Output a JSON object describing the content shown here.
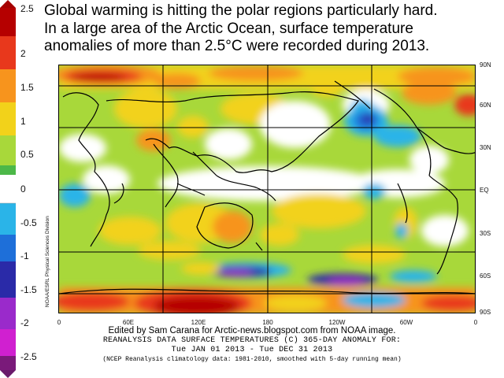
{
  "headline": {
    "line1": "Global warming is hitting the polar regions particularly hard.",
    "line2": "In a large area of the Arctic Ocean, surface temperature",
    "line3": "anomalies of more than 2.5°C were recorded during 2013."
  },
  "scale": {
    "labels": [
      "2.5",
      "2",
      "1.5",
      "1",
      "0.5",
      "0",
      "-0.5",
      "-1",
      "-1.5",
      "-2",
      "-2.5"
    ],
    "colors": [
      "#a50000",
      "#e8381c",
      "#f7941d",
      "#f2d21a",
      "#a8d83a",
      "#4cb848",
      "#ffffff",
      "#2ab4e8",
      "#1e6fd9",
      "#2a2aa8",
      "#7a2ab8",
      "#d020d0",
      "#7a1a7a"
    ]
  },
  "axes": {
    "lat_labels": [
      "90N",
      "60N",
      "30N",
      "EQ",
      "30S",
      "60S",
      "90S"
    ],
    "lon_labels": [
      "0",
      "60E",
      "120E",
      "180",
      "120W",
      "60W",
      "0"
    ]
  },
  "side_credit": "NOAA/ESRL Physical Sciences Division",
  "footer": {
    "credit": "Edited by Sam Carana for Arctic-news.blogspot.com from NOAA image.",
    "line1": "REANALYSIS DATA   SURFACE TEMPERATURES (C)   365-DAY ANOMALY FOR:",
    "line2": "Tue JAN 01 2013 - Tue DEC 31 2013",
    "line3": "(NCEP Reanalysis climatology data: 1981-2010, smoothed with 5-day running mean)"
  }
}
